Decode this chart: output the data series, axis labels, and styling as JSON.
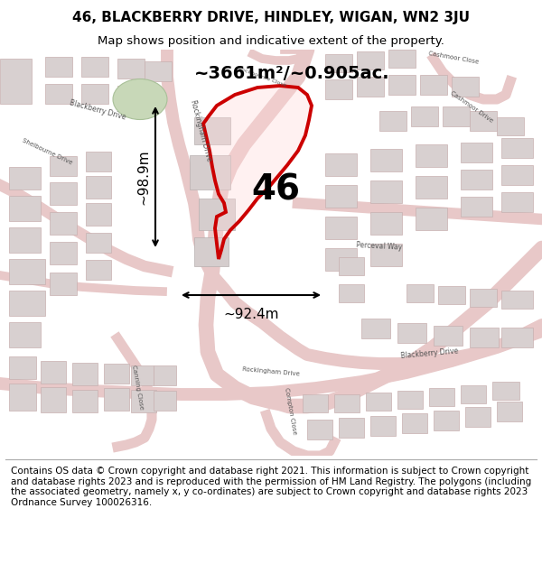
{
  "title_line1": "46, BLACKBERRY DRIVE, HINDLEY, WIGAN, WN2 3JU",
  "title_line2": "Map shows position and indicative extent of the property.",
  "area_label": "~3661m²/~0.905ac.",
  "number_label": "46",
  "width_label": "~92.4m",
  "height_label": "~98.9m",
  "footer_text": "Contains OS data © Crown copyright and database right 2021. This information is subject to Crown copyright and database rights 2023 and is reproduced with the permission of HM Land Registry. The polygons (including the associated geometry, namely x, y co-ordinates) are subject to Crown copyright and database rights 2023 Ordnance Survey 100026316.",
  "bg_color": "#ffffff",
  "map_bg": "#f5f0f0",
  "street_color": "#e8c8c8",
  "building_color": "#d8d0d0",
  "red_outline": "#cc0000",
  "black": "#000000",
  "title_fontsize": 11,
  "subtitle_fontsize": 9.5,
  "area_fontsize": 14,
  "number_fontsize": 28,
  "dim_fontsize": 11,
  "footer_fontsize": 7.5,
  "prop_face_color": [
    1.0,
    0.85,
    0.85,
    0.35
  ],
  "green_color": "#c8d8b8",
  "green_edge": "#a8c098"
}
